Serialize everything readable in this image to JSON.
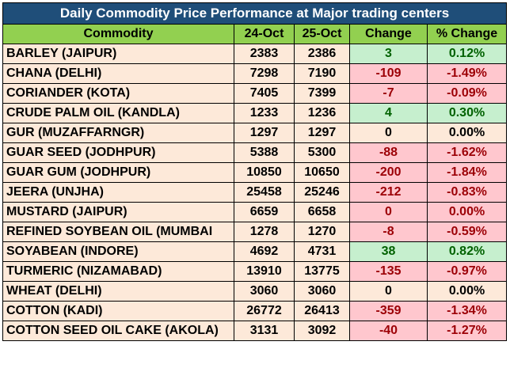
{
  "title": "Daily Commodity Price Performance at Major trading centers",
  "headers": [
    "Commodity",
    "24-Oct",
    "25-Oct",
    "Change",
    "% Change"
  ],
  "rows": [
    {
      "commodity": "BARLEY (JAIPUR)",
      "oct24": "2383",
      "oct25": "2386",
      "change": "3",
      "pct": "0.12%",
      "trend": "pos"
    },
    {
      "commodity": "CHANA (DELHI)",
      "oct24": "7298",
      "oct25": "7190",
      "change": "-109",
      "pct": "-1.49%",
      "trend": "neg"
    },
    {
      "commodity": "CORIANDER (KOTA)",
      "oct24": "7405",
      "oct25": "7399",
      "change": "-7",
      "pct": "-0.09%",
      "trend": "neg"
    },
    {
      "commodity": "CRUDE PALM OIL (KANDLA)",
      "oct24": "1233",
      "oct25": "1236",
      "change": "4",
      "pct": "0.30%",
      "trend": "pos"
    },
    {
      "commodity": "GUR (MUZAFFARNGR)",
      "oct24": "1297",
      "oct25": "1297",
      "change": "0",
      "pct": "0.00%",
      "trend": "zero"
    },
    {
      "commodity": "GUAR SEED (JODHPUR)",
      "oct24": "5388",
      "oct25": "5300",
      "change": "-88",
      "pct": "-1.62%",
      "trend": "neg"
    },
    {
      "commodity": "GUAR GUM (JODHPUR)",
      "oct24": "10850",
      "oct25": "10650",
      "change": "-200",
      "pct": "-1.84%",
      "trend": "neg"
    },
    {
      "commodity": "JEERA (UNJHA)",
      "oct24": "25458",
      "oct25": "25246",
      "change": "-212",
      "pct": "-0.83%",
      "trend": "neg"
    },
    {
      "commodity": "MUSTARD (JAIPUR)",
      "oct24": "6659",
      "oct25": "6658",
      "change": "0",
      "pct": "0.00%",
      "trend": "neg"
    },
    {
      "commodity": "REFINED SOYBEAN OIL (MUMBAI",
      "oct24": "1278",
      "oct25": "1270",
      "change": "-8",
      "pct": "-0.59%",
      "trend": "neg"
    },
    {
      "commodity": "SOYABEAN (INDORE)",
      "oct24": "4692",
      "oct25": "4731",
      "change": "38",
      "pct": "0.82%",
      "trend": "pos"
    },
    {
      "commodity": "TURMERIC (NIZAMABAD)",
      "oct24": "13910",
      "oct25": "13775",
      "change": "-135",
      "pct": "-0.97%",
      "trend": "neg"
    },
    {
      "commodity": "WHEAT (DELHI)",
      "oct24": "3060",
      "oct25": "3060",
      "change": "0",
      "pct": "0.00%",
      "trend": "zero"
    },
    {
      "commodity": "COTTON (KADI)",
      "oct24": "26772",
      "oct25": "26413",
      "change": "-359",
      "pct": "-1.34%",
      "trend": "neg"
    },
    {
      "commodity": "COTTON SEED OIL CAKE (AKOLA)",
      "oct24": "3131",
      "oct25": "3092",
      "change": "-40",
      "pct": "-1.27%",
      "trend": "neg"
    }
  ],
  "colors": {
    "title_bg": "#1f4e79",
    "header_bg": "#92d050",
    "body_bg": "#fde9d9",
    "positive_bg": "#c6efce",
    "positive_text": "#006100",
    "negative_bg": "#ffc7ce",
    "negative_text": "#9c0006"
  }
}
